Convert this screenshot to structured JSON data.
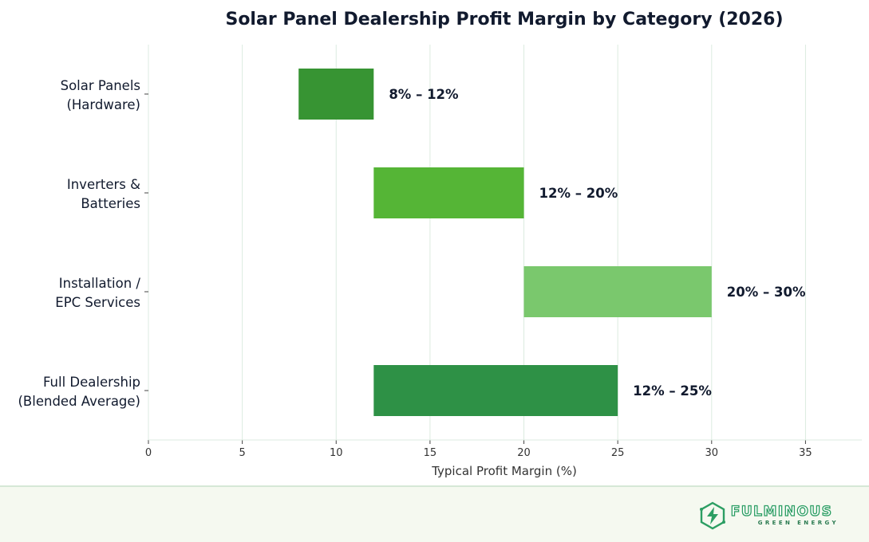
{
  "chart_data": {
    "type": "bar",
    "orientation": "horizontal-floating",
    "title": "Solar Panel Dealership Profit Margin by Category (2026)",
    "xlabel": "Typical Profit Margin (%)",
    "ylabel": "",
    "xlim": [
      0,
      38
    ],
    "xticks": [
      0,
      5,
      10,
      15,
      20,
      25,
      30,
      35
    ],
    "grid": "vertical",
    "categories": [
      [
        "Solar Panels",
        "(Hardware)"
      ],
      [
        "Inverters &",
        "Batteries"
      ],
      [
        "Installation /",
        "EPC Services"
      ],
      [
        "Full Dealership",
        "(Blended Average)"
      ]
    ],
    "ranges": [
      {
        "low": 8,
        "high": 12,
        "label": "8% – 12%",
        "color": "#379433"
      },
      {
        "low": 12,
        "high": 20,
        "label": "12% – 20%",
        "color": "#55b536"
      },
      {
        "low": 20,
        "high": 30,
        "label": "20% – 30%",
        "color": "#7ac86d"
      },
      {
        "low": 12,
        "high": 25,
        "label": "12% – 25%",
        "color": "#2e9146"
      }
    ]
  },
  "logo": {
    "name": "FULMINOUS",
    "tagline": "GREEN ENERGY",
    "icon": "hexagon-lightning-icon",
    "color": "#2c9e63"
  }
}
